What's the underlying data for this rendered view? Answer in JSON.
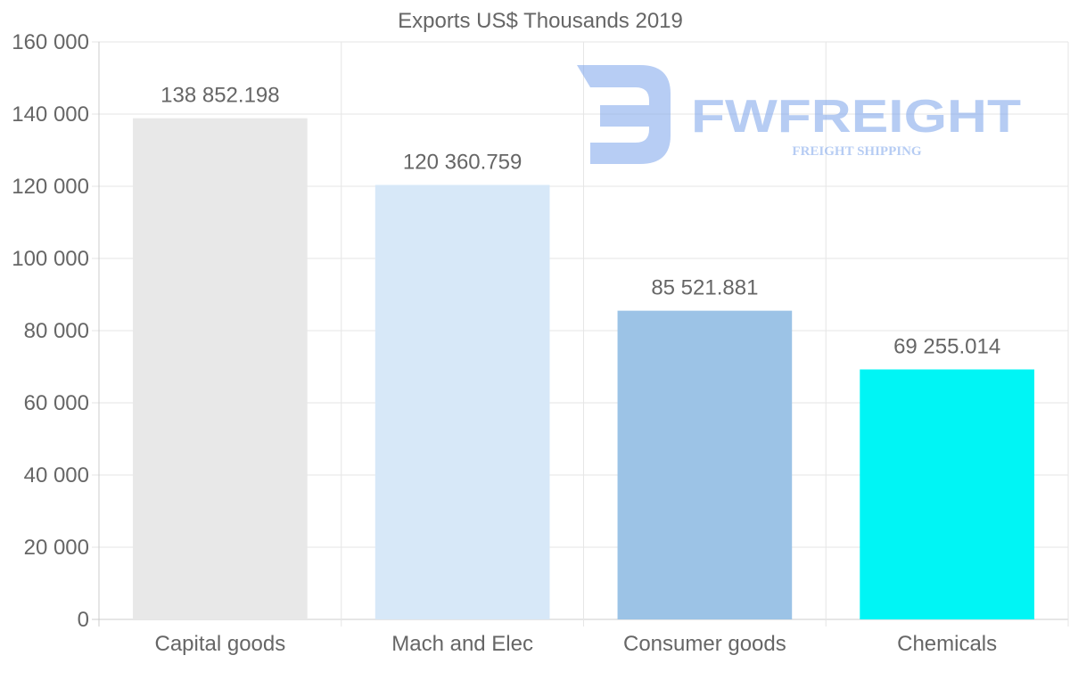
{
  "chart_data": {
    "type": "bar",
    "title": "Exports US$ Thousands 2019",
    "xlabel": "",
    "ylabel": "",
    "categories": [
      "Capital goods",
      "Mach and Elec",
      "Consumer goods",
      "Chemicals"
    ],
    "values": [
      138852.198,
      120360.759,
      85521.881,
      69255.014
    ],
    "value_labels": [
      "138 852.198",
      "120 360.759",
      "85 521.881",
      "69 255.014"
    ],
    "bar_colors": [
      "#e8e8e8",
      "#d7e8f8",
      "#9cc3e6",
      "#00f5f5"
    ],
    "ylim": [
      0,
      160000
    ],
    "yticks": [
      0,
      20000,
      40000,
      60000,
      80000,
      100000,
      120000,
      140000,
      160000
    ],
    "ytick_labels": [
      "0",
      "20 000",
      "40 000",
      "60 000",
      "80 000",
      "100 000",
      "120 000",
      "140 000",
      "160 000"
    ],
    "grid": true,
    "legend": "none"
  },
  "watermark": {
    "brand": "FWFREIGHT",
    "tagline": "FREIGHT SHIPPING",
    "color": "#7ba4eb"
  }
}
